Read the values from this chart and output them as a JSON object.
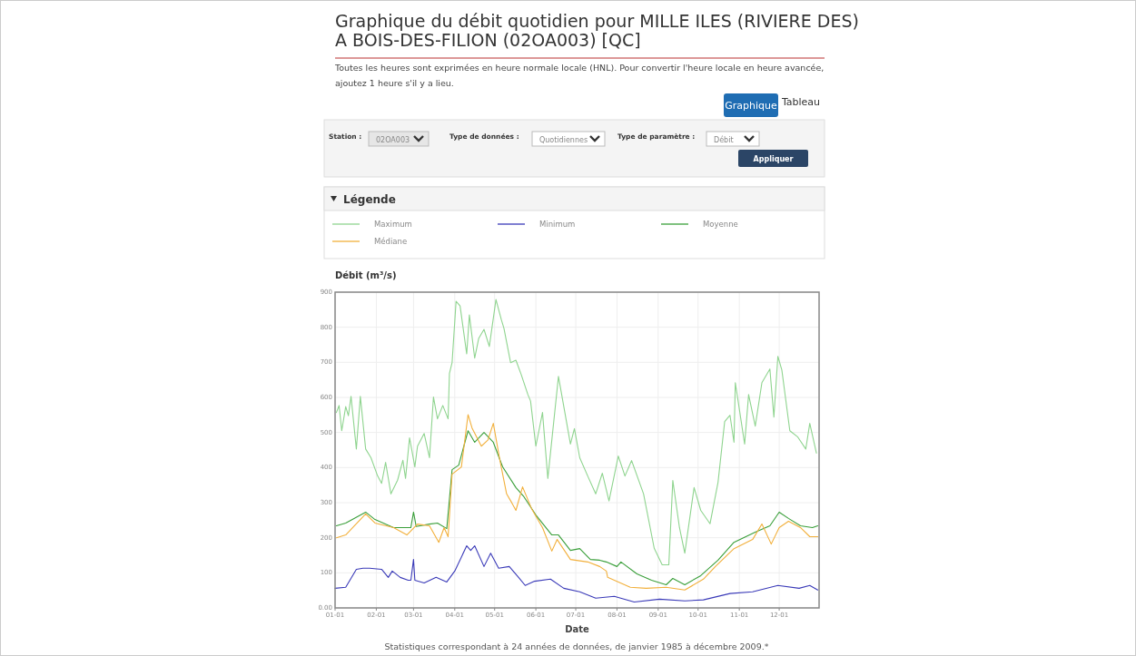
{
  "chart_data": {
    "type": "line",
    "title": "Graphique du débit quotidien pour MILLE ILES (RIVIERE DES) A BOIS-DES-FILION (02OA003) [QC]",
    "subtitle": "Toutes les heures sont exprimées en heure normale locale (HNL). Pour convertir l'heure locale en heure avancée, ajoutez 1 heure s'il y a lieu.",
    "ylabel": "Débit (m³/s)",
    "xlabel": "Date",
    "legend_title": "Légende",
    "annotations": [
      "Graphique",
      "Tableau",
      "Station :",
      "02OA003",
      "Type de données :",
      "Quotidiennes",
      "Type de paramètre :",
      "Débit",
      "Appliquer",
      "Statistiques correspondant à 24 années de données, de janvier 1985 à décembre 2009.*"
    ],
    "xlim": [
      "--01-01",
      "--12-31"
    ],
    "xticks": [
      {
        "value": "--01-01",
        "label": "01-01"
      },
      {
        "value": "--02-01",
        "label": "02-01"
      },
      {
        "value": "--03-01",
        "label": "03-01"
      },
      {
        "value": "--04-01",
        "label": "04-01"
      },
      {
        "value": "--05-01",
        "label": "05-01"
      },
      {
        "value": "--06-01",
        "label": "06-01"
      },
      {
        "value": "--07-01",
        "label": "07-01"
      },
      {
        "value": "--08-01",
        "label": "08-01"
      },
      {
        "value": "--09-01",
        "label": "09-01"
      },
      {
        "value": "--10-01",
        "label": "10-01"
      },
      {
        "value": "--11-01",
        "label": "11-01"
      },
      {
        "value": "--12-01",
        "label": "12-01"
      }
    ],
    "ylim": [
      0,
      900
    ],
    "yticks": [
      {
        "value": 0,
        "label": "0.00"
      },
      100,
      200,
      300,
      400,
      500,
      600,
      700,
      800,
      900
    ],
    "grid": true,
    "legend": "top",
    "marker": "none",
    "line_style": "solid",
    "series": [
      {
        "name": "Maximum",
        "color": "#8fd48f",
        "x": [
          "--01-02",
          "--01-04",
          "--01-06",
          "--01-09",
          "--01-11",
          "--01-13",
          "--01-17",
          "--01-20",
          "--01-24",
          "--01-28",
          "--02-02",
          "--02-05",
          "--02-08",
          "--02-12",
          "--02-17",
          "--02-21",
          "--02-23",
          "--02-26",
          "--03-02",
          "--03-04",
          "--03-09",
          "--03-13",
          "--03-16",
          "--03-19",
          "--03-23",
          "--03-27",
          "--03-28",
          "--03-30",
          "--04-02",
          "--04-05",
          "--04-10",
          "--04-12",
          "--04-16",
          "--04-19",
          "--04-23",
          "--04-27",
          "--05-02",
          "--05-06",
          "--05-08",
          "--05-13",
          "--05-17",
          "--05-21",
          "--05-26",
          "--05-28",
          "--06-01",
          "--06-06",
          "--06-10",
          "--06-18",
          "--06-27",
          "--06-30",
          "--07-04",
          "--07-10",
          "--07-16",
          "--07-21",
          "--07-26",
          "--08-02",
          "--08-07",
          "--08-12",
          "--08-21",
          "--08-29",
          "--09-04",
          "--09-09",
          "--09-12",
          "--09-17",
          "--09-21",
          "--09-28",
          "--10-03",
          "--10-10",
          "--10-13",
          "--10-16",
          "--10-21",
          "--10-25",
          "--10-28",
          "--10-29",
          "--11-05",
          "--11-08",
          "--11-13",
          "--11-18",
          "--11-24",
          "--11-27",
          "--11-30",
          "--12-03",
          "--12-09",
          "--12-15",
          "--12-21",
          "--12-24",
          "--12-29"
        ],
        "values": [
          557,
          577,
          505,
          574,
          548,
          603,
          453,
          603,
          453,
          428,
          376,
          355,
          415,
          325,
          364,
          421,
          369,
          485,
          402,
          461,
          497,
          428,
          601,
          539,
          577,
          539,
          668,
          699,
          874,
          861,
          724,
          835,
          712,
          768,
          794,
          745,
          879,
          822,
          797,
          699,
          706,
          665,
          608,
          590,
          461,
          557,
          369,
          660,
          467,
          511,
          428,
          376,
          325,
          384,
          305,
          433,
          376,
          420,
          325,
          170,
          123,
          123,
          363,
          229,
          156,
          343,
          278,
          240,
          299,
          358,
          531,
          549,
          472,
          642,
          467,
          608,
          518,
          642,
          681,
          544,
          717,
          678,
          505,
          487,
          453,
          526,
          441
        ]
      },
      {
        "name": "Minimum",
        "color": "#3a3ab8",
        "x": [
          "--01-01",
          "--01-09",
          "--01-17",
          "--01-22",
          "--01-27",
          "--02-05",
          "--02-10",
          "--02-13",
          "--02-19",
          "--02-25",
          "--02-27",
          "--03-01",
          "--03-02",
          "--03-09",
          "--03-18",
          "--03-26",
          "--04-01",
          "--04-10",
          "--04-13",
          "--04-16",
          "--04-23",
          "--04-28",
          "--05-04",
          "--05-12",
          "--05-19",
          "--05-24",
          "--05-31",
          "--06-12",
          "--06-22",
          "--07-04",
          "--07-16",
          "--07-30",
          "--08-14",
          "--09-02",
          "--09-21",
          "--10-05",
          "--10-25",
          "--11-11",
          "--11-30",
          "--12-16",
          "--12-24",
          "--12-30"
        ],
        "values": [
          56,
          59,
          110,
          113,
          113,
          110,
          87,
          105,
          87,
          79,
          79,
          138,
          79,
          71,
          87,
          74,
          105,
          177,
          164,
          177,
          118,
          156,
          113,
          118,
          87,
          64,
          76,
          82,
          56,
          46,
          28,
          33,
          17,
          25,
          20,
          23,
          41,
          46,
          64,
          56,
          64,
          51
        ]
      },
      {
        "name": "Moyenne",
        "color": "#3a9f3a",
        "x": [
          "--01-02",
          "--01-09",
          "--01-24",
          "--01-31",
          "--02-14",
          "--02-27",
          "--03-01",
          "--03-03",
          "--03-13",
          "--03-19",
          "--03-26",
          "--03-30",
          "--04-04",
          "--04-11",
          "--04-16",
          "--04-23",
          "--04-30",
          "--05-07",
          "--05-17",
          "--05-23",
          "--06-01",
          "--06-13",
          "--06-18",
          "--06-27",
          "--07-04",
          "--07-12",
          "--07-19",
          "--07-24",
          "--08-01",
          "--08-04",
          "--08-16",
          "--08-27",
          "--09-07",
          "--09-12",
          "--09-21",
          "--10-03",
          "--10-16",
          "--10-28",
          "--11-13",
          "--11-24",
          "--12-01",
          "--12-08",
          "--12-17",
          "--12-26",
          "--12-30"
        ],
        "values": [
          234,
          242,
          273,
          252,
          229,
          229,
          273,
          232,
          239,
          242,
          226,
          394,
          407,
          505,
          472,
          500,
          472,
          402,
          343,
          317,
          265,
          208,
          208,
          164,
          169,
          138,
          136,
          131,
          118,
          131,
          97,
          79,
          66,
          84,
          66,
          92,
          136,
          187,
          216,
          234,
          273,
          255,
          234,
          229,
          234
        ]
      },
      {
        "name": "Médiane",
        "color": "#f2b03c",
        "x": [
          "--01-02",
          "--01-09",
          "--01-24",
          "--01-31",
          "--02-14",
          "--02-24",
          "--03-04",
          "--03-13",
          "--03-20",
          "--03-24",
          "--03-27",
          "--03-30",
          "--04-06",
          "--04-11",
          "--04-14",
          "--04-21",
          "--04-26",
          "--04-30",
          "--05-05",
          "--05-10",
          "--05-14",
          "--05-17",
          "--05-22",
          "--05-29",
          "--06-06",
          "--06-13",
          "--06-17",
          "--06-27",
          "--07-10",
          "--07-19",
          "--07-24",
          "--07-25",
          "--08-11",
          "--08-23",
          "--09-07",
          "--09-21",
          "--10-05",
          "--10-14",
          "--10-28",
          "--11-11",
          "--11-18",
          "--11-25",
          "--12-01",
          "--12-08",
          "--12-17",
          "--12-24",
          "--12-30"
        ],
        "values": [
          200,
          208,
          268,
          242,
          229,
          208,
          239,
          234,
          187,
          229,
          203,
          381,
          402,
          551,
          513,
          461,
          479,
          526,
          420,
          325,
          299,
          278,
          345,
          281,
          229,
          162,
          195,
          138,
          131,
          118,
          105,
          87,
          59,
          56,
          59,
          51,
          82,
          118,
          169,
          195,
          239,
          182,
          229,
          247,
          229,
          203,
          203
        ]
      }
    ]
  }
}
